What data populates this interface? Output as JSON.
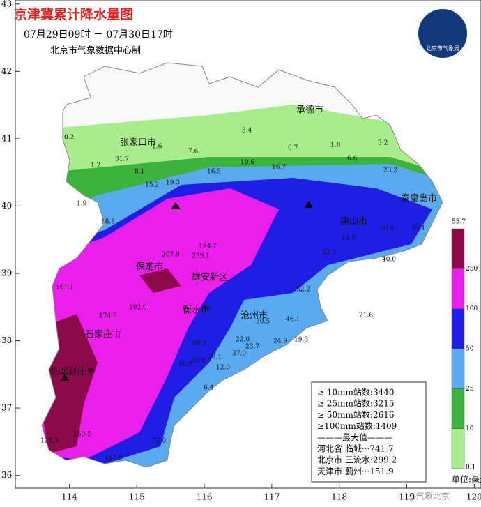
{
  "header": {
    "title": "京津冀累计降水量图",
    "period": "07月29日09时 － 07月30日17时",
    "producer": "北京市气象数据中心制"
  },
  "logo": {
    "text": "北京市气象局"
  },
  "axes": {
    "xlim": [
      113.2,
      120.1
    ],
    "ylim": [
      35.81,
      43.06
    ],
    "lon_ticks": [
      114,
      115,
      116,
      117,
      118,
      119,
      120
    ],
    "lat_ticks": [
      36,
      37,
      38,
      39,
      40,
      41,
      42,
      43
    ]
  },
  "cities": [
    "承德市",
    "张家口市",
    "秦皇岛市",
    "唐山市",
    "保定市",
    "雄安新区",
    "沧州市",
    "衡水市",
    "石家庄市",
    "临城赵庄乡"
  ],
  "stations": [
    "0.2",
    "1.6",
    "1.2",
    "31.7",
    "7.6",
    "3.4",
    "0.7",
    "1.8",
    "3.2",
    "6.6",
    "8.1",
    "15.2",
    "19.3",
    "16.5",
    "10.6",
    "16.7",
    "23.2",
    "1.9",
    "18.8",
    "207.9",
    "194.7",
    "239.1",
    "60.4",
    "55.7",
    "40.0",
    "32.9",
    "52.2",
    "21.6",
    "46.1",
    "30.5",
    "22.0",
    "23.7",
    "24.9",
    "19.3",
    "37.0",
    "29.1",
    "39.0",
    "48.9",
    "60.1",
    "12.0",
    "6.4",
    "72.0",
    "150.5",
    "123.3",
    "117.9",
    "161.1",
    "174.6",
    "192.0",
    "35.1",
    "43.6"
  ],
  "stats": {
    "lines": [
      "≥ 10mm站数:3440",
      "≥ 25mm站数:3215",
      "≥ 50mm站数:2616",
      "≥100mm站数:1409",
      "———最大值———",
      "河北省  临城···741.7",
      "北京市  三流水:299.2",
      "天津市  蓟州···151.9"
    ]
  },
  "colorbar": {
    "labels": [
      0.1,
      10,
      25,
      50,
      100,
      250
    ],
    "colors": [
      "#a8ec8c",
      "#3cb43c",
      "#5aaaf0",
      "#1e1ee6",
      "#ec1eec",
      "#8c0a4a"
    ]
  },
  "unit": "单位:毫米",
  "watermark": "@气象北京"
}
